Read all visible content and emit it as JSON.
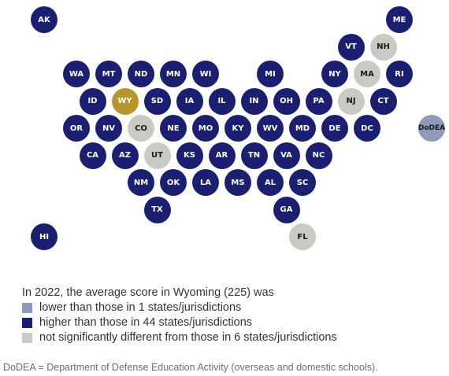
{
  "colors": {
    "lower": "#8e9ab8",
    "higher": "#1a1f71",
    "not_significant": "#cbc9c4",
    "focal": "#b8952b"
  },
  "map": {
    "focal_state": "WY",
    "tiles": [
      {
        "abbr": "AK",
        "category": "higher",
        "col": 0,
        "row": 0
      },
      {
        "abbr": "ME",
        "category": "higher",
        "col": 11,
        "row": 0
      },
      {
        "abbr": "VT",
        "category": "higher",
        "col": 9.5,
        "row": 1
      },
      {
        "abbr": "NH",
        "category": "not_significant",
        "col": 10.5,
        "row": 1
      },
      {
        "abbr": "WA",
        "category": "higher",
        "col": 1,
        "row": 2
      },
      {
        "abbr": "MT",
        "category": "higher",
        "col": 2,
        "row": 2
      },
      {
        "abbr": "ND",
        "category": "higher",
        "col": 3,
        "row": 2
      },
      {
        "abbr": "MN",
        "category": "higher",
        "col": 4,
        "row": 2
      },
      {
        "abbr": "WI",
        "category": "higher",
        "col": 5,
        "row": 2
      },
      {
        "abbr": "MI",
        "category": "higher",
        "col": 7,
        "row": 2
      },
      {
        "abbr": "NY",
        "category": "higher",
        "col": 9,
        "row": 2
      },
      {
        "abbr": "MA",
        "category": "not_significant",
        "col": 10,
        "row": 2
      },
      {
        "abbr": "RI",
        "category": "higher",
        "col": 11,
        "row": 2
      },
      {
        "abbr": "ID",
        "category": "higher",
        "col": 1.5,
        "row": 3
      },
      {
        "abbr": "WY",
        "category": "focal",
        "col": 2.5,
        "row": 3
      },
      {
        "abbr": "SD",
        "category": "higher",
        "col": 3.5,
        "row": 3
      },
      {
        "abbr": "IA",
        "category": "higher",
        "col": 4.5,
        "row": 3
      },
      {
        "abbr": "IL",
        "category": "higher",
        "col": 5.5,
        "row": 3
      },
      {
        "abbr": "IN",
        "category": "higher",
        "col": 6.5,
        "row": 3
      },
      {
        "abbr": "OH",
        "category": "higher",
        "col": 7.5,
        "row": 3
      },
      {
        "abbr": "PA",
        "category": "higher",
        "col": 8.5,
        "row": 3
      },
      {
        "abbr": "NJ",
        "category": "not_significant",
        "col": 9.5,
        "row": 3
      },
      {
        "abbr": "CT",
        "category": "higher",
        "col": 10.5,
        "row": 3
      },
      {
        "abbr": "OR",
        "category": "higher",
        "col": 1,
        "row": 4
      },
      {
        "abbr": "NV",
        "category": "higher",
        "col": 2,
        "row": 4
      },
      {
        "abbr": "CO",
        "category": "not_significant",
        "col": 3,
        "row": 4
      },
      {
        "abbr": "NE",
        "category": "higher",
        "col": 4,
        "row": 4
      },
      {
        "abbr": "MO",
        "category": "higher",
        "col": 5,
        "row": 4
      },
      {
        "abbr": "KY",
        "category": "higher",
        "col": 6,
        "row": 4
      },
      {
        "abbr": "WV",
        "category": "higher",
        "col": 7,
        "row": 4
      },
      {
        "abbr": "MD",
        "category": "higher",
        "col": 8,
        "row": 4
      },
      {
        "abbr": "DE",
        "category": "higher",
        "col": 9,
        "row": 4
      },
      {
        "abbr": "DC",
        "category": "higher",
        "col": 10,
        "row": 4
      },
      {
        "abbr": "DoDEA",
        "category": "lower",
        "col": 12,
        "row": 4
      },
      {
        "abbr": "CA",
        "category": "higher",
        "col": 1.5,
        "row": 5
      },
      {
        "abbr": "AZ",
        "category": "higher",
        "col": 2.5,
        "row": 5
      },
      {
        "abbr": "UT",
        "category": "not_significant",
        "col": 3.5,
        "row": 5
      },
      {
        "abbr": "KS",
        "category": "higher",
        "col": 4.5,
        "row": 5
      },
      {
        "abbr": "AR",
        "category": "higher",
        "col": 5.5,
        "row": 5
      },
      {
        "abbr": "TN",
        "category": "higher",
        "col": 6.5,
        "row": 5
      },
      {
        "abbr": "VA",
        "category": "higher",
        "col": 7.5,
        "row": 5
      },
      {
        "abbr": "NC",
        "category": "higher",
        "col": 8.5,
        "row": 5
      },
      {
        "abbr": "NM",
        "category": "higher",
        "col": 3,
        "row": 6
      },
      {
        "abbr": "OK",
        "category": "higher",
        "col": 4,
        "row": 6
      },
      {
        "abbr": "LA",
        "category": "higher",
        "col": 5,
        "row": 6
      },
      {
        "abbr": "MS",
        "category": "higher",
        "col": 6,
        "row": 6
      },
      {
        "abbr": "AL",
        "category": "higher",
        "col": 7,
        "row": 6
      },
      {
        "abbr": "SC",
        "category": "higher",
        "col": 8,
        "row": 6
      },
      {
        "abbr": "TX",
        "category": "higher",
        "col": 3.5,
        "row": 7
      },
      {
        "abbr": "GA",
        "category": "higher",
        "col": 7.5,
        "row": 7
      },
      {
        "abbr": "HI",
        "category": "higher",
        "col": 0,
        "row": 8
      },
      {
        "abbr": "FL",
        "category": "not_significant",
        "col": 8,
        "row": 8
      }
    ]
  },
  "legend": {
    "intro": "In 2022, the average score in Wyoming (225) was",
    "items": [
      {
        "category": "lower",
        "label": "lower than those in 1 states/jurisdictions"
      },
      {
        "category": "higher",
        "label": "higher than those in 44 states/jurisdictions"
      },
      {
        "category": "not_significant",
        "label": "not significantly different from those in 6 states/jurisdictions"
      }
    ]
  },
  "footnote": "DoDEA = Department of Defense Education Activity (overseas and domestic schools)."
}
